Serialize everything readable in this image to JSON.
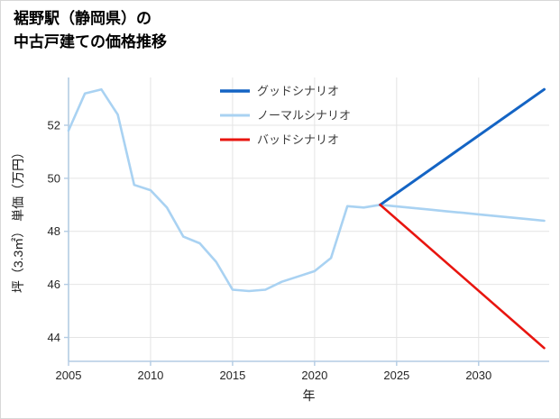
{
  "page": {
    "title_line1": "裾野駅（静岡県）の",
    "title_line2": "中古戸建ての価格推移"
  },
  "chart_data": {
    "type": "line",
    "title": "裾野駅（静岡県）の中古戸建ての価格推移",
    "xlabel": "年",
    "ylabel": "坪（3.3㎡） 単価（万円）",
    "xlim": [
      2005,
      2034.3
    ],
    "ylim": [
      43.1,
      53.8
    ],
    "xticks": [
      2005,
      2010,
      2015,
      2020,
      2025,
      2030
    ],
    "yticks": [
      44,
      46,
      48,
      50,
      52
    ],
    "grid": true,
    "legend_position": "upper-center-inside",
    "axis_color": "#b3cbe3",
    "grid_color": "#e4e4e4",
    "series": [
      {
        "key": "good",
        "name": "グッドシナリオ",
        "color": "#1464c4",
        "width": 3,
        "z": 2,
        "x": [
          2024,
          2034
        ],
        "values": [
          49.0,
          53.35
        ]
      },
      {
        "key": "normal",
        "name": "ノーマルシナリオ",
        "color": "#a9d2f2",
        "width": 2.6,
        "z": 1,
        "x": [
          2005,
          2006,
          2007,
          2008,
          2009,
          2010,
          2011,
          2012,
          2013,
          2014,
          2015,
          2016,
          2017,
          2018,
          2019,
          2020,
          2021,
          2022,
          2023,
          2024,
          2025,
          2026,
          2027,
          2028,
          2029,
          2030,
          2031,
          2032,
          2033,
          2034
        ],
        "values": [
          51.8,
          53.2,
          53.35,
          52.4,
          49.75,
          49.55,
          48.9,
          47.8,
          47.55,
          46.85,
          45.8,
          45.75,
          45.8,
          46.1,
          46.3,
          46.5,
          47.0,
          48.95,
          48.9,
          49.0,
          48.94,
          48.88,
          48.82,
          48.76,
          48.7,
          48.64,
          48.58,
          48.52,
          48.46,
          48.4
        ]
      },
      {
        "key": "bad",
        "name": "バッドシナリオ",
        "color": "#e8150f",
        "width": 2.6,
        "z": 3,
        "x": [
          2024,
          2034
        ],
        "values": [
          49.0,
          43.6
        ]
      }
    ]
  }
}
